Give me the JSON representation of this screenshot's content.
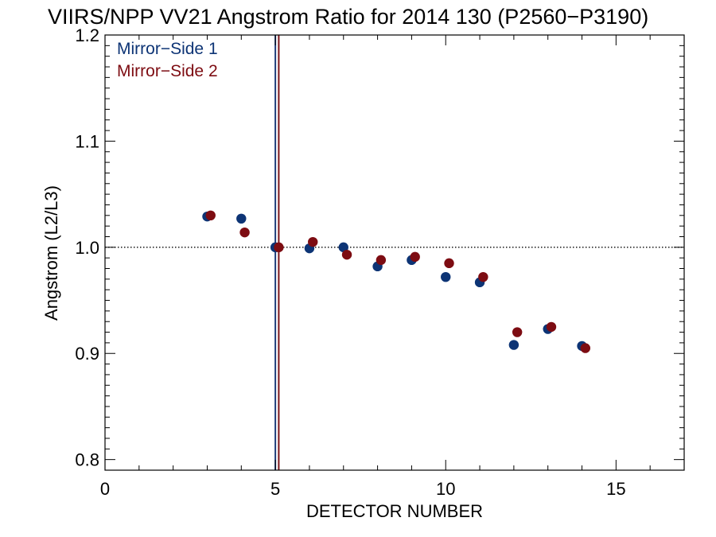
{
  "chart_data": {
    "type": "scatter",
    "title": "VIIRS/NPP VV21 Angstrom Ratio for 2014 130 (P2560−P3190)",
    "xlabel": "DETECTOR NUMBER",
    "ylabel": "Angstrom (L2/L3)",
    "xlim": [
      0,
      17
    ],
    "ylim": [
      0.79,
      1.2
    ],
    "x_ticks": [
      0,
      5,
      10,
      15
    ],
    "x_tick_labels": [
      "0",
      "5",
      "10",
      "15"
    ],
    "y_ticks": [
      0.8,
      0.9,
      1.0,
      1.1,
      1.2
    ],
    "y_tick_labels": [
      "0.8",
      "0.9",
      "1.0",
      "1.1",
      "1.2"
    ],
    "grid": false,
    "legend_position": "top-left",
    "reference_line_y": 1.0,
    "vertical_lines": [
      {
        "x": 5.0,
        "color": "#1f3d7a"
      },
      {
        "x": 5.1,
        "color": "#7a1419"
      }
    ],
    "series": [
      {
        "name": "Mirror−Side 1",
        "color": "#0d3475",
        "x": [
          3,
          4,
          5,
          6,
          7,
          8,
          9,
          10,
          11,
          12,
          13,
          14
        ],
        "y": [
          1.029,
          1.027,
          1.0,
          0.999,
          1.0,
          0.982,
          0.988,
          0.972,
          0.967,
          0.908,
          0.923,
          0.907
        ]
      },
      {
        "name": "Mirror−Side 2",
        "color": "#7d0c12",
        "x": [
          3.1,
          4.1,
          5.1,
          6.1,
          7.1,
          8.1,
          9.1,
          10.1,
          11.1,
          12.1,
          13.1,
          14.1
        ],
        "y": [
          1.03,
          1.014,
          1.0,
          1.005,
          0.993,
          0.988,
          0.991,
          0.985,
          0.972,
          0.92,
          0.925,
          0.905
        ]
      }
    ]
  }
}
